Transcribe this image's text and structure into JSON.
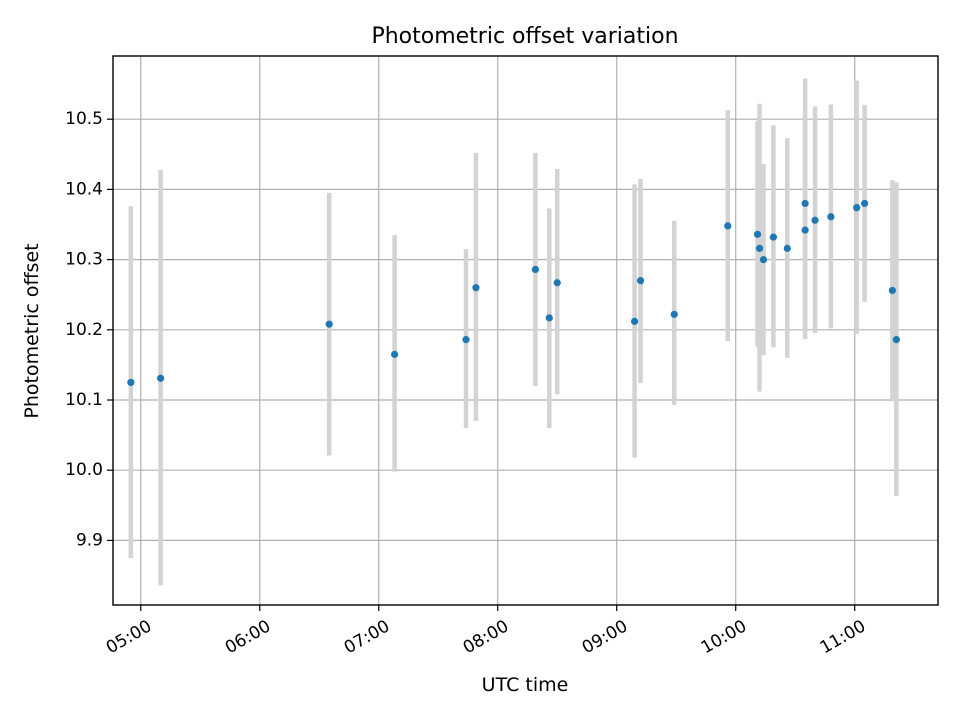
{
  "chart_data": {
    "type": "scatter",
    "title": "Photometric offset variation",
    "xlabel": "UTC time",
    "ylabel": "Photometric offset",
    "xlim": [
      "04:46",
      "11:42"
    ],
    "ylim": [
      9.808,
      10.59
    ],
    "grid": true,
    "x_ticks": [
      "05:00",
      "06:00",
      "07:00",
      "08:00",
      "09:00",
      "10:00",
      "11:00"
    ],
    "y_ticks": [
      "9.9",
      "10.0",
      "10.1",
      "10.2",
      "10.3",
      "10.4",
      "10.5"
    ],
    "point_color": "#1f77b4",
    "error_bar_color": "#d3d3d3",
    "series": [
      {
        "points": [
          {
            "x": "04:55",
            "y": 10.125,
            "ylow": 9.875,
            "yhigh": 10.376
          },
          {
            "x": "05:10",
            "y": 10.131,
            "ylow": 9.836,
            "yhigh": 10.428
          },
          {
            "x": "06:35",
            "y": 10.208,
            "ylow": 10.021,
            "yhigh": 10.395
          },
          {
            "x": "07:08",
            "y": 10.165,
            "ylow": 9.998,
            "yhigh": 10.335
          },
          {
            "x": "07:44",
            "y": 10.186,
            "ylow": 10.06,
            "yhigh": 10.315
          },
          {
            "x": "07:49",
            "y": 10.26,
            "ylow": 10.07,
            "yhigh": 10.452
          },
          {
            "x": "08:19",
            "y": 10.286,
            "ylow": 10.12,
            "yhigh": 10.452
          },
          {
            "x": "08:26",
            "y": 10.217,
            "ylow": 10.06,
            "yhigh": 10.373
          },
          {
            "x": "08:30",
            "y": 10.267,
            "ylow": 10.108,
            "yhigh": 10.429
          },
          {
            "x": "09:09",
            "y": 10.212,
            "ylow": 10.018,
            "yhigh": 10.407
          },
          {
            "x": "09:12",
            "y": 10.27,
            "ylow": 10.124,
            "yhigh": 10.415
          },
          {
            "x": "09:29",
            "y": 10.222,
            "ylow": 10.093,
            "yhigh": 10.355
          },
          {
            "x": "09:56",
            "y": 10.348,
            "ylow": 10.184,
            "yhigh": 10.513
          },
          {
            "x": "10:11",
            "y": 10.336,
            "ylow": 10.176,
            "yhigh": 10.497
          },
          {
            "x": "10:12",
            "y": 10.316,
            "ylow": 10.112,
            "yhigh": 10.522
          },
          {
            "x": "10:14",
            "y": 10.3,
            "ylow": 10.164,
            "yhigh": 10.436
          },
          {
            "x": "10:19",
            "y": 10.332,
            "ylow": 10.175,
            "yhigh": 10.491
          },
          {
            "x": "10:26",
            "y": 10.316,
            "ylow": 10.16,
            "yhigh": 10.473
          },
          {
            "x": "10:35",
            "y": 10.38,
            "ylow": 10.202,
            "yhigh": 10.558
          },
          {
            "x": "10:35",
            "y": 10.342,
            "ylow": 10.187,
            "yhigh": 10.497
          },
          {
            "x": "10:40",
            "y": 10.356,
            "ylow": 10.195,
            "yhigh": 10.518
          },
          {
            "x": "10:48",
            "y": 10.361,
            "ylow": 10.202,
            "yhigh": 10.521
          },
          {
            "x": "11:01",
            "y": 10.374,
            "ylow": 10.194,
            "yhigh": 10.555
          },
          {
            "x": "11:05",
            "y": 10.38,
            "ylow": 10.24,
            "yhigh": 10.52
          },
          {
            "x": "11:19",
            "y": 10.256,
            "ylow": 10.1,
            "yhigh": 10.413
          },
          {
            "x": "11:21",
            "y": 10.186,
            "ylow": 9.963,
            "yhigh": 10.41
          }
        ]
      }
    ]
  }
}
